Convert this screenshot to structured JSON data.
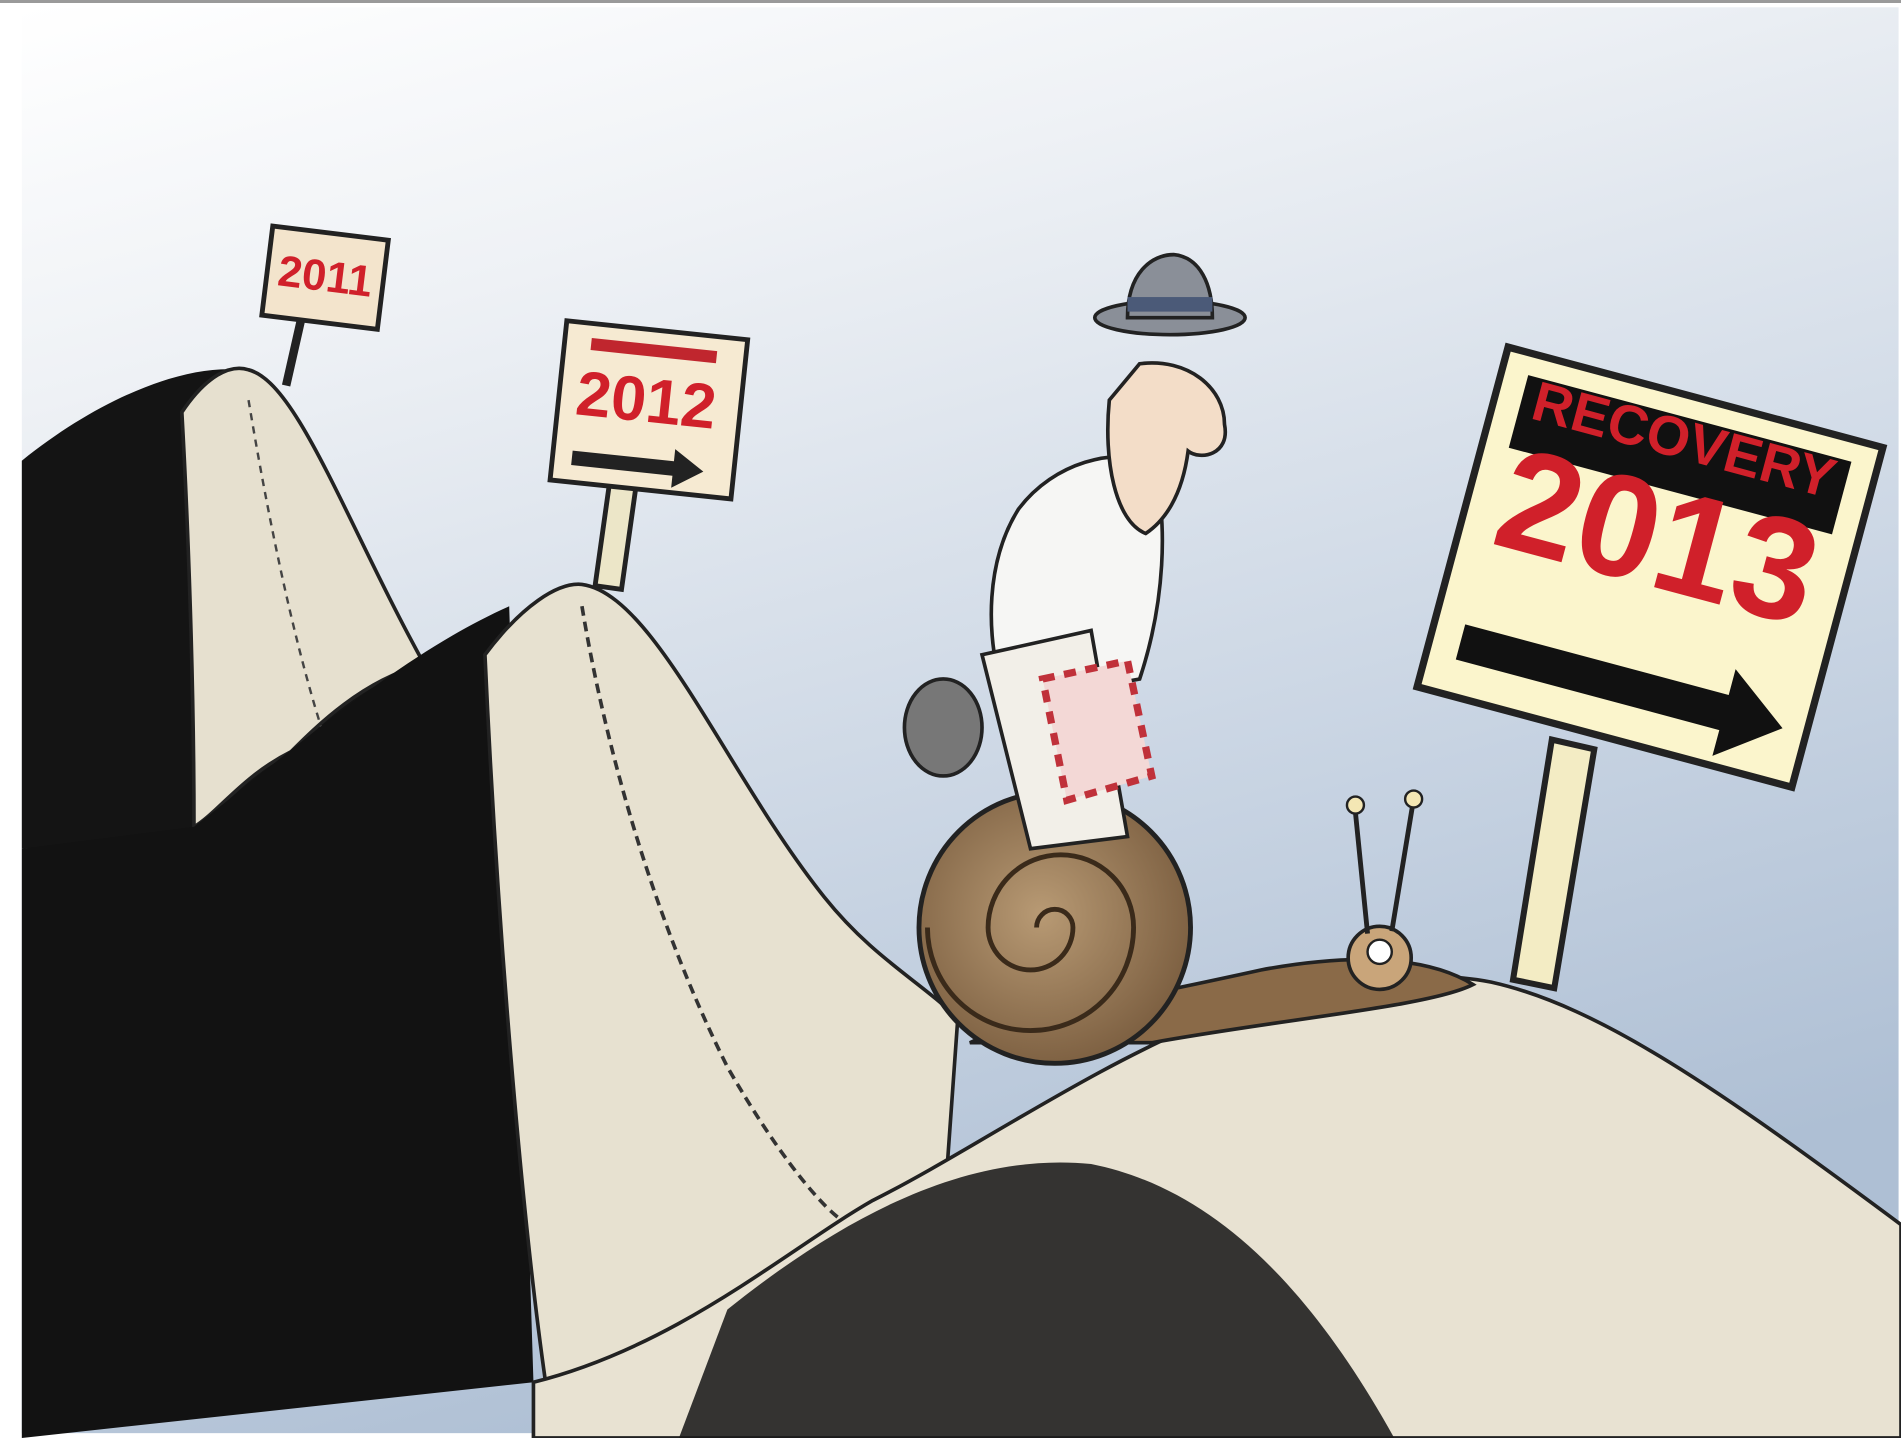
{
  "signs": [
    {
      "label": "2011"
    },
    {
      "label": "2012"
    },
    {
      "heading": "RECOVERY",
      "label": "2013"
    }
  ]
}
